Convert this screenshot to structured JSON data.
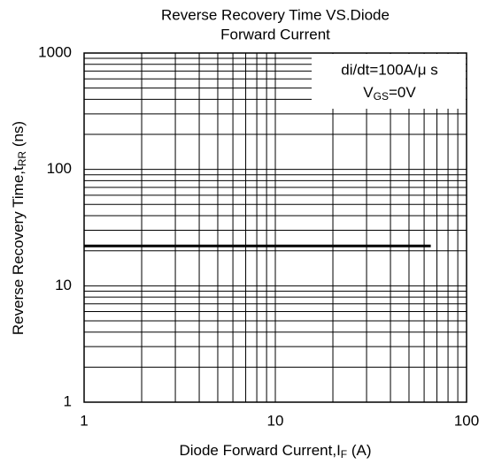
{
  "chart_data": {
    "type": "line",
    "title": [
      "Reverse Recovery Time VS.Diode",
      "Forward Current"
    ],
    "xlabel": {
      "text": "Diode Forward Current,I",
      "sub": "F",
      "suffix": " (A)"
    },
    "ylabel": {
      "text": "Reverse Recovery Time,t",
      "sub": "RR",
      "suffix": " (ns)"
    },
    "annotation": {
      "line1": "di/dt=100A/μ s",
      "line2": {
        "text": "V",
        "sub": "GS",
        "suffix": "=0V"
      }
    },
    "x": [
      1,
      65
    ],
    "series": [
      {
        "name": "trr",
        "color": "#000000",
        "values": [
          22,
          22
        ]
      }
    ],
    "xlim": [
      1,
      100
    ],
    "xticks": [
      1,
      10,
      100
    ],
    "ylim": [
      1,
      1000
    ],
    "yticks": [
      1,
      10,
      100,
      1000
    ],
    "xscale": "log",
    "yscale": "log",
    "grid": true
  }
}
